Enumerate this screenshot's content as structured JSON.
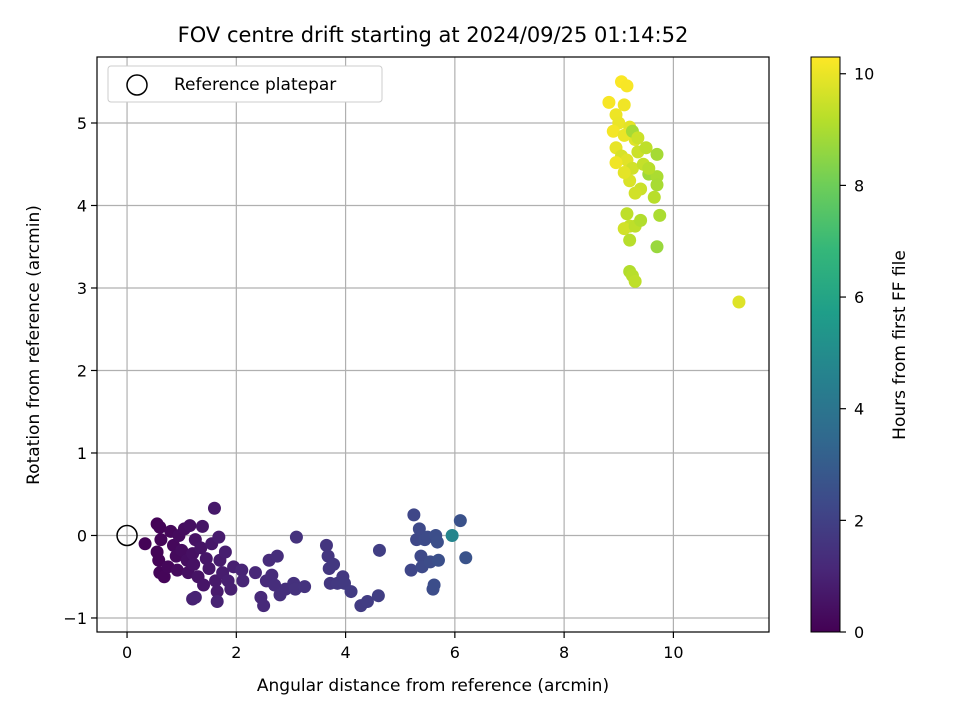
{
  "chart_data": {
    "type": "scatter",
    "title": "FOV centre drift starting at 2024/09/25 01:14:52",
    "xlabel": "Angular distance from reference (arcmin)",
    "ylabel": "Rotation from reference (arcmin)",
    "xlim": [
      -0.55,
      11.75
    ],
    "ylim": [
      -1.17,
      5.8
    ],
    "xticks": [
      0,
      2,
      4,
      6,
      8,
      10
    ],
    "yticks": [
      -1,
      0,
      1,
      2,
      3,
      4,
      5
    ],
    "grid": true,
    "legend": {
      "position": "top-left",
      "entries": [
        "Reference platepar"
      ]
    },
    "reference_point": {
      "x": 0,
      "y": 0,
      "label": "Reference platepar"
    },
    "colorbar": {
      "label": "Hours from first FF file",
      "range": [
        0,
        10.3
      ],
      "ticks": [
        0,
        2,
        4,
        6,
        8,
        10
      ],
      "colormap": "viridis"
    },
    "colormap_stops": [
      "#440154",
      "#482878",
      "#3e4989",
      "#31688e",
      "#26828e",
      "#1f9e89",
      "#35b779",
      "#6ece58",
      "#b5de2b",
      "#fde725"
    ],
    "series": [
      {
        "values_note_fields": [
          "x",
          "y",
          "hours"
        ],
        "points": [
          [
            0.33,
            -0.1,
            0.05
          ],
          [
            0.55,
            0.14,
            0.1
          ],
          [
            0.6,
            0.1,
            0.12
          ],
          [
            0.62,
            -0.05,
            0.15
          ],
          [
            0.55,
            -0.2,
            0.08
          ],
          [
            0.58,
            -0.3,
            0.1
          ],
          [
            0.6,
            -0.45,
            0.12
          ],
          [
            0.68,
            -0.5,
            0.15
          ],
          [
            0.75,
            -0.38,
            0.18
          ],
          [
            0.8,
            0.05,
            0.2
          ],
          [
            0.85,
            -0.12,
            0.22
          ],
          [
            0.9,
            -0.25,
            0.25
          ],
          [
            0.92,
            -0.42,
            0.28
          ],
          [
            0.95,
            0.0,
            0.3
          ],
          [
            1.0,
            -0.18,
            0.32
          ],
          [
            1.05,
            0.08,
            0.35
          ],
          [
            1.1,
            -0.3,
            0.38
          ],
          [
            1.12,
            -0.45,
            0.4
          ],
          [
            1.15,
            0.12,
            0.42
          ],
          [
            1.2,
            -0.22,
            0.45
          ],
          [
            1.22,
            -0.35,
            0.48
          ],
          [
            1.25,
            -0.05,
            0.5
          ],
          [
            1.3,
            -0.5,
            0.52
          ],
          [
            1.35,
            -0.15,
            0.55
          ],
          [
            1.38,
            0.11,
            0.58
          ],
          [
            1.4,
            -0.6,
            0.6
          ],
          [
            1.45,
            -0.28,
            0.62
          ],
          [
            1.5,
            -0.4,
            0.65
          ],
          [
            1.55,
            -0.1,
            0.68
          ],
          [
            1.6,
            0.33,
            0.7
          ],
          [
            1.62,
            -0.55,
            0.72
          ],
          [
            1.65,
            -0.68,
            0.75
          ],
          [
            1.68,
            -0.02,
            0.78
          ],
          [
            1.7,
            -0.3,
            0.8
          ],
          [
            1.75,
            -0.45,
            0.82
          ],
          [
            1.8,
            -0.2,
            0.85
          ],
          [
            1.85,
            -0.55,
            0.88
          ],
          [
            1.9,
            -0.65,
            0.9
          ],
          [
            1.95,
            -0.38,
            0.92
          ],
          [
            1.2,
            -0.77,
            0.95
          ],
          [
            1.25,
            -0.75,
            0.97
          ],
          [
            1.65,
            -0.8,
            1.0
          ],
          [
            2.1,
            -0.42,
            1.05
          ],
          [
            2.12,
            -0.55,
            1.08
          ],
          [
            2.35,
            -0.45,
            1.15
          ],
          [
            2.45,
            -0.75,
            1.2
          ],
          [
            2.5,
            -0.85,
            1.22
          ],
          [
            2.55,
            -0.55,
            1.25
          ],
          [
            2.6,
            -0.3,
            1.28
          ],
          [
            2.65,
            -0.48,
            1.3
          ],
          [
            2.7,
            -0.6,
            1.32
          ],
          [
            2.75,
            -0.25,
            1.35
          ],
          [
            2.8,
            -0.72,
            1.38
          ],
          [
            2.9,
            -0.65,
            1.4
          ],
          [
            3.05,
            -0.58,
            1.45
          ],
          [
            3.08,
            -0.65,
            1.48
          ],
          [
            3.1,
            -0.02,
            1.5
          ],
          [
            3.25,
            -0.62,
            1.52
          ],
          [
            3.65,
            -0.12,
            1.6
          ],
          [
            3.68,
            -0.25,
            1.62
          ],
          [
            3.7,
            -0.4,
            1.65
          ],
          [
            3.72,
            -0.58,
            1.68
          ],
          [
            3.78,
            -0.35,
            1.7
          ],
          [
            3.85,
            -0.58,
            1.72
          ],
          [
            3.95,
            -0.5,
            1.75
          ],
          [
            3.98,
            -0.58,
            1.78
          ],
          [
            4.1,
            -0.68,
            1.8
          ],
          [
            4.28,
            -0.85,
            1.85
          ],
          [
            4.4,
            -0.8,
            1.88
          ],
          [
            4.6,
            -0.73,
            1.9
          ],
          [
            4.62,
            -0.18,
            1.92
          ],
          [
            5.2,
            -0.42,
            2.2
          ],
          [
            5.25,
            0.25,
            2.22
          ],
          [
            5.3,
            -0.05,
            2.25
          ],
          [
            5.35,
            0.08,
            2.28
          ],
          [
            5.38,
            -0.25,
            2.3
          ],
          [
            5.4,
            -0.38,
            2.32
          ],
          [
            5.45,
            -0.05,
            2.35
          ],
          [
            5.5,
            -0.02,
            2.38
          ],
          [
            5.55,
            -0.32,
            2.4
          ],
          [
            5.6,
            -0.65,
            2.42
          ],
          [
            5.62,
            -0.6,
            2.45
          ],
          [
            5.65,
            0.0,
            2.48
          ],
          [
            5.68,
            -0.08,
            2.5
          ],
          [
            5.7,
            -0.3,
            2.52
          ],
          [
            6.1,
            0.18,
            2.6
          ],
          [
            6.2,
            -0.27,
            2.65
          ],
          [
            5.95,
            0.0,
            4.7
          ],
          [
            8.82,
            5.25,
            10.2
          ],
          [
            9.05,
            5.5,
            10.25
          ],
          [
            9.15,
            5.45,
            10.2
          ],
          [
            9.1,
            5.22,
            10.1
          ],
          [
            8.95,
            5.1,
            10.05
          ],
          [
            9.0,
            5.0,
            10.0
          ],
          [
            8.9,
            4.9,
            10.15
          ],
          [
            9.2,
            4.95,
            9.9
          ],
          [
            9.3,
            4.8,
            9.8
          ],
          [
            9.1,
            4.85,
            10.0
          ],
          [
            8.95,
            4.7,
            9.95
          ],
          [
            9.05,
            4.6,
            9.7
          ],
          [
            9.15,
            4.55,
            9.85
          ],
          [
            9.25,
            4.45,
            9.6
          ],
          [
            9.35,
            4.65,
            9.5
          ],
          [
            9.45,
            4.5,
            9.4
          ],
          [
            9.55,
            4.38,
            8.8
          ],
          [
            9.5,
            4.7,
            9.3
          ],
          [
            9.2,
            4.3,
            9.75
          ],
          [
            9.1,
            4.4,
            9.9
          ],
          [
            8.95,
            4.52,
            10.1
          ],
          [
            9.4,
            4.2,
            9.5
          ],
          [
            9.3,
            4.15,
            9.6
          ],
          [
            9.65,
            4.1,
            9.2
          ],
          [
            9.7,
            4.35,
            9.0
          ],
          [
            9.7,
            4.62,
            8.9
          ],
          [
            9.7,
            4.25,
            8.95
          ],
          [
            9.15,
            3.9,
            9.3
          ],
          [
            9.2,
            3.75,
            9.4
          ],
          [
            9.1,
            3.72,
            9.6
          ],
          [
            9.3,
            3.75,
            9.3
          ],
          [
            9.4,
            3.82,
            9.1
          ],
          [
            9.2,
            3.58,
            9.2
          ],
          [
            9.75,
            3.88,
            9.0
          ],
          [
            9.7,
            3.5,
            8.7
          ],
          [
            9.2,
            3.2,
            9.1
          ],
          [
            9.25,
            3.15,
            9.2
          ],
          [
            9.3,
            3.08,
            9.3
          ],
          [
            9.55,
            4.45,
            9.2
          ],
          [
            9.25,
            4.9,
            8.9
          ],
          [
            9.35,
            4.82,
            9.5
          ],
          [
            11.2,
            2.83,
            9.8
          ]
        ]
      }
    ]
  }
}
